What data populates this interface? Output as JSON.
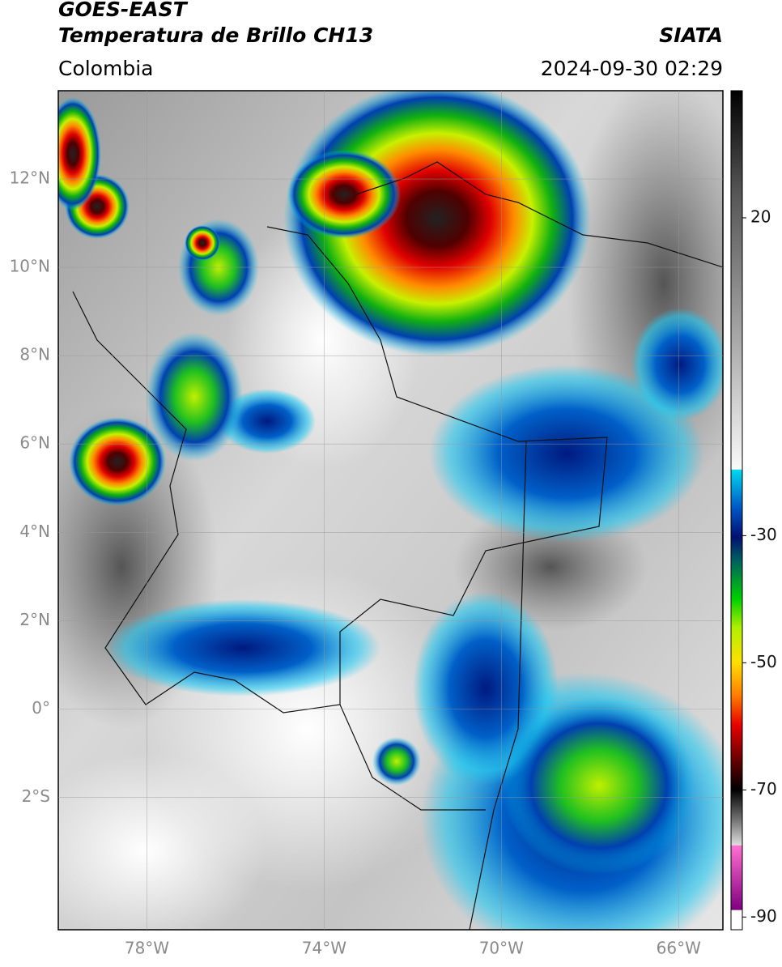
{
  "header": {
    "title": "GOES-EAST",
    "subtitle": "Temperatura de Brillo CH13",
    "source": "SIATA",
    "region": "Colombia",
    "timestamp": "2024-09-30 02:29"
  },
  "map": {
    "lonlim": [
      -80,
      -65
    ],
    "latlim": [
      -5,
      14
    ],
    "lon_ticks": [
      {
        "value": -78,
        "label": "78°W"
      },
      {
        "value": -74,
        "label": "74°W"
      },
      {
        "value": -70,
        "label": "70°W"
      },
      {
        "value": -66,
        "label": "66°W"
      }
    ],
    "lat_ticks": [
      {
        "value": 12,
        "label": "12°N"
      },
      {
        "value": 10,
        "label": "10°N"
      },
      {
        "value": 8,
        "label": "8°N"
      },
      {
        "value": 6,
        "label": "6°N"
      },
      {
        "value": 4,
        "label": "4°N"
      },
      {
        "value": 2,
        "label": "2°N"
      },
      {
        "value": 0,
        "label": "0°"
      },
      {
        "value": -2,
        "label": "2°S"
      }
    ],
    "grid": true
  },
  "colorbar": {
    "lim": [
      -92,
      40
    ],
    "ticks": [
      20,
      -30,
      -50,
      -70,
      -90
    ]
  }
}
